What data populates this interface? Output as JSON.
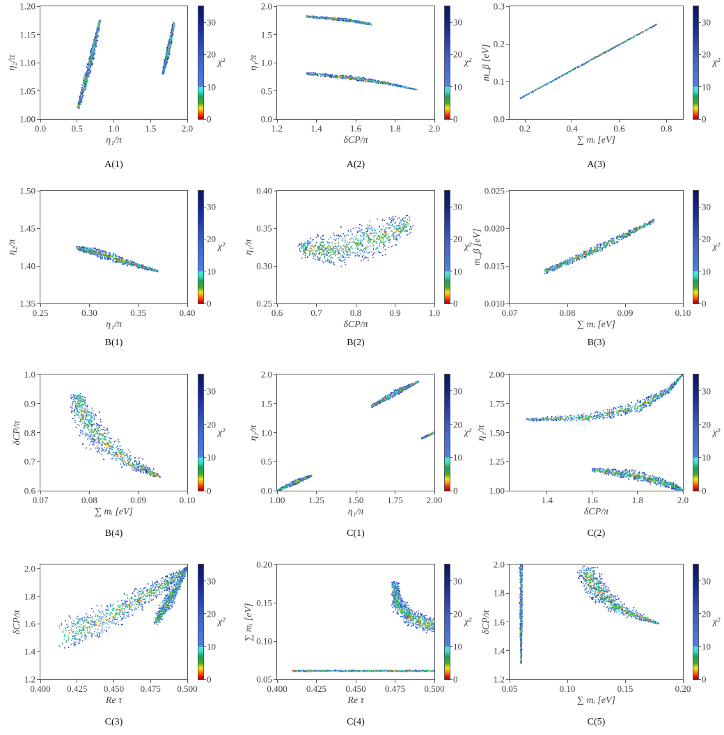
{
  "colorbar": {
    "label": "χ²",
    "range": [
      0,
      35
    ],
    "ticks": [
      0,
      10,
      20,
      30
    ],
    "tick_labels": [
      "0",
      "10",
      "20",
      "30"
    ]
  },
  "chart_data": [
    {
      "type": "scatter",
      "caption": "A(1)",
      "xlabel": "η₁/π",
      "ylabel": "η₂/π",
      "xlim": [
        0,
        2
      ],
      "ylim": [
        1.0,
        1.2
      ],
      "xticks": [
        0,
        0.5,
        1,
        1.5,
        2
      ],
      "xtick_labels": [
        "0.0",
        "0.5",
        "1.0",
        "1.5",
        "2.0"
      ],
      "yticks": [
        1,
        1.05,
        1.1,
        1.15,
        1.2
      ],
      "ytick_labels": [
        "1.00",
        "1.05",
        "1.10",
        "1.15",
        "1.20"
      ],
      "regions": [
        [
          [
            0.52,
            1.022,
            0.01,
            0.004
          ],
          [
            0.62,
            1.07,
            0.03,
            0.006
          ],
          [
            0.7,
            1.11,
            0.03,
            0.006
          ],
          [
            0.81,
            1.175,
            0.01,
            0.003
          ]
        ],
        [
          [
            1.67,
            1.082,
            0.01,
            0.003
          ],
          [
            1.74,
            1.12,
            0.025,
            0.005
          ],
          [
            1.82,
            1.17,
            0.01,
            0.003
          ]
        ]
      ]
    },
    {
      "type": "scatter",
      "caption": "A(2)",
      "xlabel": "δCP/π",
      "ylabel": "η₁/π",
      "xlim": [
        1.2,
        2.0
      ],
      "ylim": [
        0,
        2
      ],
      "xticks": [
        1.2,
        1.4,
        1.6,
        1.8,
        2.0
      ],
      "xtick_labels": [
        "1.2",
        "1.4",
        "1.6",
        "1.8",
        "2.0"
      ],
      "yticks": [
        0,
        0.5,
        1,
        1.5,
        2
      ],
      "ytick_labels": [
        "0.0",
        "0.5",
        "1.0",
        "1.5",
        "2.0"
      ],
      "regions": [
        [
          [
            1.35,
            1.82,
            0,
            0.015
          ],
          [
            1.55,
            1.76,
            0,
            0.025
          ],
          [
            1.68,
            1.68,
            0,
            0.01
          ]
        ],
        [
          [
            1.35,
            0.81,
            0,
            0.02
          ],
          [
            1.6,
            0.72,
            0,
            0.035
          ],
          [
            1.75,
            0.64,
            0,
            0.02
          ],
          [
            1.91,
            0.52,
            0,
            0.005
          ]
        ]
      ]
    },
    {
      "type": "scatter",
      "caption": "A(3)",
      "xlabel": "∑ mᵢ [eV]",
      "ylabel": "m_β [eV]",
      "xlim": [
        0.135,
        0.87
      ],
      "ylim": [
        0,
        0.3
      ],
      "xticks": [
        0.2,
        0.4,
        0.6,
        0.8
      ],
      "xtick_labels": [
        "0.2",
        "0.4",
        "0.6",
        "0.8"
      ],
      "yticks": [
        0,
        0.1,
        0.2,
        0.3
      ],
      "ytick_labels": [
        "0.0",
        "0.1",
        "0.2",
        "0.3"
      ],
      "regions": [
        [
          [
            0.18,
            0.055,
            0,
            0.0015
          ],
          [
            0.76,
            0.252,
            0,
            0.0015
          ]
        ]
      ]
    },
    {
      "type": "scatter",
      "caption": "B(1)",
      "xlabel": "η₁/π",
      "ylabel": "η₂/π",
      "xlim": [
        0.25,
        0.4
      ],
      "ylim": [
        1.35,
        1.5
      ],
      "xticks": [
        0.25,
        0.3,
        0.35,
        0.4
      ],
      "xtick_labels": [
        "0.25",
        "0.30",
        "0.35",
        "0.40"
      ],
      "yticks": [
        1.35,
        1.4,
        1.45,
        1.5
      ],
      "ytick_labels": [
        "1.35",
        "1.40",
        "1.45",
        "1.50"
      ],
      "regions": [
        [
          [
            0.287,
            1.424,
            0,
            0.002
          ],
          [
            0.31,
            1.417,
            0,
            0.006
          ],
          [
            0.34,
            1.404,
            0,
            0.004
          ],
          [
            0.37,
            1.393,
            0,
            0.001
          ]
        ]
      ]
    },
    {
      "type": "scatter",
      "caption": "B(2)",
      "xlabel": "δCP/π",
      "ylabel": "η₁/π",
      "xlim": [
        0.6,
        1.0
      ],
      "ylim": [
        0.25,
        0.4
      ],
      "xticks": [
        0.6,
        0.7,
        0.8,
        0.9,
        1.0
      ],
      "xtick_labels": [
        "0.6",
        "0.7",
        "0.8",
        "0.9",
        "1.0"
      ],
      "yticks": [
        0.25,
        0.3,
        0.35,
        0.4
      ],
      "ytick_labels": [
        "0.25",
        "0.30",
        "0.35",
        "0.40"
      ],
      "regions": [
        [
          [
            0.66,
            0.322,
            0.01,
            0.01
          ],
          [
            0.75,
            0.322,
            0.03,
            0.022
          ],
          [
            0.85,
            0.335,
            0.03,
            0.025
          ],
          [
            0.935,
            0.355,
            0.01,
            0.012
          ]
        ]
      ]
    },
    {
      "type": "scatter",
      "caption": "B(3)",
      "xlabel": "∑ mᵢ [eV]",
      "ylabel": "m_β [eV]",
      "xlim": [
        0.07,
        0.1
      ],
      "ylim": [
        0.01,
        0.025
      ],
      "xticks": [
        0.07,
        0.08,
        0.09,
        0.1
      ],
      "xtick_labels": [
        "0.07",
        "0.08",
        "0.09",
        "0.10"
      ],
      "yticks": [
        0.01,
        0.015,
        0.02,
        0.025
      ],
      "ytick_labels": [
        "0.010",
        "0.015",
        "0.020",
        "0.025"
      ],
      "regions": [
        [
          [
            0.076,
            0.0142,
            0,
            0.0003
          ],
          [
            0.085,
            0.0172,
            0,
            0.0005
          ],
          [
            0.095,
            0.021,
            0,
            0.0002
          ]
        ]
      ]
    },
    {
      "type": "scatter",
      "caption": "B(4)",
      "xlabel": "∑ mᵢ [eV]",
      "ylabel": "δCP/π",
      "xlim": [
        0.07,
        0.1
      ],
      "ylim": [
        0.6,
        1.0
      ],
      "xticks": [
        0.07,
        0.08,
        0.09,
        0.1
      ],
      "xtick_labels": [
        "0.07",
        "0.08",
        "0.09",
        "0.10"
      ],
      "yticks": [
        0.6,
        0.7,
        0.8,
        0.9,
        1.0
      ],
      "ytick_labels": [
        "0.6",
        "0.7",
        "0.8",
        "0.9",
        "1.0"
      ],
      "regions": [
        [
          [
            0.0775,
            0.93,
            0.0015,
            0.01
          ],
          [
            0.079,
            0.85,
            0.0025,
            0.03
          ],
          [
            0.083,
            0.76,
            0.003,
            0.025
          ],
          [
            0.089,
            0.69,
            0.002,
            0.015
          ],
          [
            0.094,
            0.65,
            0.0005,
            0.004
          ]
        ]
      ]
    },
    {
      "type": "scatter",
      "caption": "C(1)",
      "xlabel": "η₁/π",
      "ylabel": "η₂/π",
      "xlim": [
        1.0,
        2.0
      ],
      "ylim": [
        0,
        2
      ],
      "xticks": [
        1,
        1.25,
        1.5,
        1.75,
        2
      ],
      "xtick_labels": [
        "1.00",
        "1.25",
        "1.50",
        "1.75",
        "2.00"
      ],
      "yticks": [
        0,
        0.5,
        1,
        1.5,
        2
      ],
      "ytick_labels": [
        "0.0",
        "0.5",
        "1.0",
        "1.5",
        "2.0"
      ],
      "regions": [
        [
          [
            1.0,
            0.0,
            0,
            0.01
          ],
          [
            1.12,
            0.15,
            0,
            0.04
          ],
          [
            1.22,
            0.26,
            0,
            0.01
          ]
        ],
        [
          [
            1.6,
            1.45,
            0,
            0.02
          ],
          [
            1.75,
            1.68,
            0,
            0.05
          ],
          [
            1.9,
            1.88,
            0,
            0.01
          ]
        ],
        [
          [
            1.92,
            0.9,
            0,
            0.01
          ],
          [
            2.0,
            1.0,
            0,
            0.01
          ]
        ]
      ]
    },
    {
      "type": "scatter",
      "caption": "C(2)",
      "xlabel": "δCP/π",
      "ylabel": "η₁/π",
      "xlim": [
        1.235,
        2.0
      ],
      "ylim": [
        1.0,
        2.0
      ],
      "xticks": [
        1.4,
        1.6,
        1.8,
        2.0
      ],
      "xtick_labels": [
        "1.4",
        "1.6",
        "1.8",
        "2.0"
      ],
      "yticks": [
        1,
        1.25,
        1.5,
        1.75,
        2
      ],
      "ytick_labels": [
        "1.00",
        "1.25",
        "1.50",
        "1.75",
        "2.00"
      ],
      "regions": [
        [
          [
            1.31,
            1.61,
            0,
            0.008
          ],
          [
            1.6,
            1.635,
            0,
            0.035
          ],
          [
            1.8,
            1.72,
            0,
            0.05
          ],
          [
            1.93,
            1.85,
            0,
            0.03
          ],
          [
            2.0,
            2.0,
            0,
            0.005
          ]
        ],
        [
          [
            1.6,
            1.18,
            0,
            0.015
          ],
          [
            1.8,
            1.13,
            0,
            0.045
          ],
          [
            1.95,
            1.05,
            0,
            0.03
          ],
          [
            2.0,
            1.0,
            0,
            0.005
          ]
        ]
      ]
    },
    {
      "type": "scatter",
      "caption": "C(3)",
      "xlabel": "Re τ",
      "ylabel": "δCP/π",
      "xlim": [
        0.4,
        0.5
      ],
      "ylim": [
        1.2,
        2.03
      ],
      "xticks": [
        0.4,
        0.425,
        0.45,
        0.475,
        0.5
      ],
      "xtick_labels": [
        "0.400",
        "0.425",
        "0.450",
        "0.475",
        "0.500"
      ],
      "yticks": [
        1.2,
        1.4,
        1.6,
        1.8,
        2.0
      ],
      "ytick_labels": [
        "1.2",
        "1.4",
        "1.6",
        "1.8",
        "2.0"
      ],
      "regions": [
        [
          [
            0.415,
            1.52,
            0.004,
            0.1
          ],
          [
            0.44,
            1.62,
            0.003,
            0.11
          ],
          [
            0.465,
            1.76,
            0.003,
            0.08
          ],
          [
            0.485,
            1.89,
            0.002,
            0.05
          ],
          [
            0.5,
            2.0,
            0,
            0.01
          ]
        ],
        [
          [
            0.479,
            1.62,
            0.002,
            0.03
          ],
          [
            0.489,
            1.8,
            0.003,
            0.05
          ],
          [
            0.5,
            2.0,
            0,
            0.01
          ]
        ]
      ]
    },
    {
      "type": "scatter",
      "caption": "C(4)",
      "xlabel": "Re τ",
      "ylabel": "∑ mᵢ [eV]",
      "xlim": [
        0.4,
        0.5
      ],
      "ylim": [
        0.05,
        0.2
      ],
      "xticks": [
        0.4,
        0.425,
        0.45,
        0.475,
        0.5
      ],
      "xtick_labels": [
        "0.400",
        "0.425",
        "0.450",
        "0.475",
        "0.500"
      ],
      "yticks": [
        0.05,
        0.1,
        0.15,
        0.2
      ],
      "ytick_labels": [
        "0.05",
        "0.10",
        "0.15",
        "0.20"
      ],
      "regions": [
        [
          [
            0.41,
            0.061,
            0,
            0.0008
          ],
          [
            0.5,
            0.061,
            0,
            0.0008
          ]
        ],
        [
          [
            0.475,
            0.175,
            0.002,
            0.004
          ],
          [
            0.476,
            0.15,
            0.003,
            0.01
          ],
          [
            0.485,
            0.13,
            0.002,
            0.012
          ],
          [
            0.5,
            0.12,
            0,
            0.01
          ]
        ]
      ]
    },
    {
      "type": "scatter",
      "caption": "C(5)",
      "xlabel": "∑ mᵢ [eV]",
      "ylabel": "δCP/π",
      "xlim": [
        0.05,
        0.2
      ],
      "ylim": [
        1.2,
        2.0
      ],
      "xticks": [
        0.05,
        0.1,
        0.15,
        0.2
      ],
      "xtick_labels": [
        "0.05",
        "0.10",
        "0.15",
        "0.20"
      ],
      "yticks": [
        1.2,
        1.4,
        1.6,
        1.8,
        2.0
      ],
      "ytick_labels": [
        "1.2",
        "1.4",
        "1.6",
        "1.8",
        "2.0"
      ],
      "regions": [
        [
          [
            0.06,
            2.0,
            0.0012,
            0
          ],
          [
            0.06,
            1.6,
            0.001,
            0
          ],
          [
            0.06,
            1.31,
            0.0003,
            0
          ]
        ],
        [
          [
            0.117,
            1.96,
            0.008,
            0.04
          ],
          [
            0.125,
            1.82,
            0.01,
            0.06
          ],
          [
            0.145,
            1.69,
            0.007,
            0.04
          ],
          [
            0.178,
            1.59,
            0.001,
            0.005
          ]
        ]
      ]
    }
  ]
}
